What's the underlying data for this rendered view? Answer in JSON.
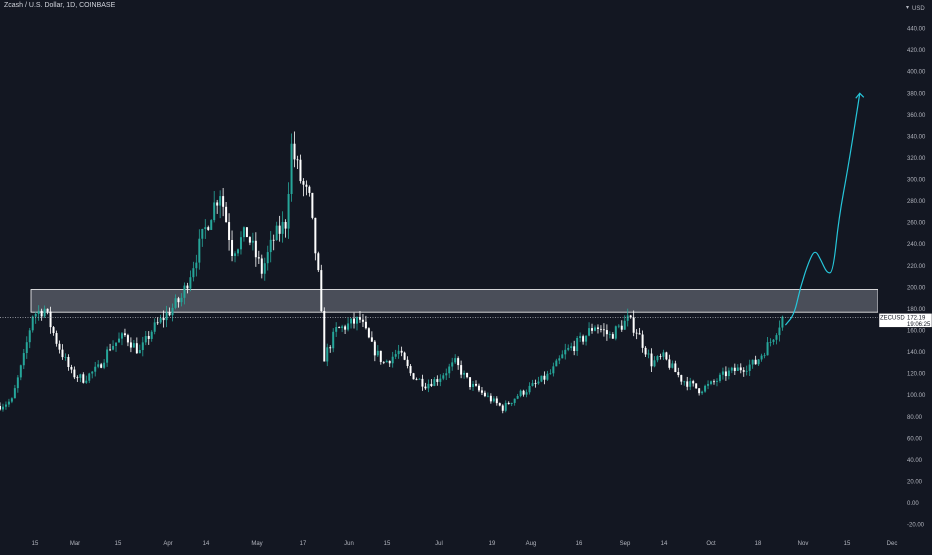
{
  "header": {
    "title": "Zcash / U.S. Dollar, 1D, COINBASE"
  },
  "price_axis": {
    "unit": "USD"
  },
  "current_price": {
    "symbol": "ZECUSD",
    "value": "172.19",
    "countdown": "19:06:25"
  },
  "colors": {
    "background": "#131722",
    "up": "#26a69a",
    "down": "#ffffff",
    "projection": "#26c6da",
    "zone_fill": "#787b86",
    "zone_border": "#ffffff",
    "text": "#b2b5be"
  },
  "chart_data": {
    "type": "candlestick",
    "title": "Zcash / U.S. Dollar, 1D, COINBASE",
    "ylabel": "USD",
    "ylim": [
      -25,
      460
    ],
    "y_ticks": [
      "440.00",
      "420.00",
      "400.00",
      "380.00",
      "360.00",
      "340.00",
      "320.00",
      "300.00",
      "280.00",
      "260.00",
      "240.00",
      "220.00",
      "200.00",
      "180.00",
      "160.00",
      "140.00",
      "120.00",
      "100.00",
      "80.00",
      "60.00",
      "40.00",
      "20.00",
      "0.00",
      "-20.00"
    ],
    "x_ticks": [
      "15",
      "Mar",
      "15",
      "Apr",
      "14",
      "May",
      "17",
      "Jun",
      "15",
      "Jul",
      "19",
      "Aug",
      "16",
      "Sep",
      "14",
      "Oct",
      "18",
      "Nov",
      "15",
      "Dec"
    ],
    "grid": false,
    "resistance_zone": [
      177,
      198
    ],
    "current_price_line": 172.19,
    "price_path": [
      [
        "Feb 01",
        90
      ],
      [
        "Feb 05",
        95
      ],
      [
        "Feb 09",
        135
      ],
      [
        "Feb 12",
        175
      ],
      [
        "Feb 16",
        180
      ],
      [
        "Feb 20",
        150
      ],
      [
        "Feb 25",
        120
      ],
      [
        "Mar 01",
        115
      ],
      [
        "Mar 06",
        125
      ],
      [
        "Mar 10",
        145
      ],
      [
        "Mar 15",
        155
      ],
      [
        "Mar 20",
        140
      ],
      [
        "Mar 24",
        160
      ],
      [
        "Mar 29",
        175
      ],
      [
        "Apr 03",
        190
      ],
      [
        "Apr 08",
        230
      ],
      [
        "Apr 13",
        270
      ],
      [
        "Apr 16",
        290
      ],
      [
        "Apr 20",
        235
      ],
      [
        "Apr 25",
        250
      ],
      [
        "Apr 30",
        215
      ],
      [
        "May 04",
        245
      ],
      [
        "May 08",
        260
      ],
      [
        "May 10",
        330
      ],
      [
        "May 13",
        300
      ],
      [
        "May 16",
        280
      ],
      [
        "May 19",
        210
      ],
      [
        "May 21",
        135
      ],
      [
        "May 25",
        160
      ],
      [
        "May 29",
        165
      ],
      [
        "Jun 02",
        170
      ],
      [
        "Jun 06",
        145
      ],
      [
        "Jun 10",
        130
      ],
      [
        "Jun 15",
        140
      ],
      [
        "Jun 19",
        120
      ],
      [
        "Jun 24",
        110
      ],
      [
        "Jun 28",
        115
      ],
      [
        "Jul 04",
        130
      ],
      [
        "Jul 09",
        110
      ],
      [
        "Jul 14",
        100
      ],
      [
        "Jul 20",
        88
      ],
      [
        "Jul 25",
        100
      ],
      [
        "Jul 31",
        110
      ],
      [
        "Aug 05",
        120
      ],
      [
        "Aug 10",
        140
      ],
      [
        "Aug 15",
        150
      ],
      [
        "Aug 20",
        165
      ],
      [
        "Aug 25",
        155
      ],
      [
        "Aug 31",
        170
      ],
      [
        "Sep 03",
        160
      ],
      [
        "Sep 08",
        130
      ],
      [
        "Sep 12",
        135
      ],
      [
        "Sep 18",
        115
      ],
      [
        "Sep 24",
        105
      ],
      [
        "Sep 28",
        110
      ],
      [
        "Oct 03",
        120
      ],
      [
        "Oct 08",
        125
      ],
      [
        "Oct 13",
        130
      ],
      [
        "Oct 18",
        150
      ],
      [
        "Oct 22",
        172
      ]
    ],
    "projection": [
      [
        "Oct 23",
        165
      ],
      [
        "Oct 26",
        175
      ],
      [
        "Oct 28",
        200
      ],
      [
        "Oct 31",
        225
      ],
      [
        "Nov 02",
        235
      ],
      [
        "Nov 04",
        225
      ],
      [
        "Nov 06",
        213
      ],
      [
        "Nov 08",
        214
      ],
      [
        "Nov 10",
        265
      ],
      [
        "Nov 13",
        310
      ],
      [
        "Nov 16",
        362
      ],
      [
        "Nov 17",
        380
      ]
    ]
  }
}
